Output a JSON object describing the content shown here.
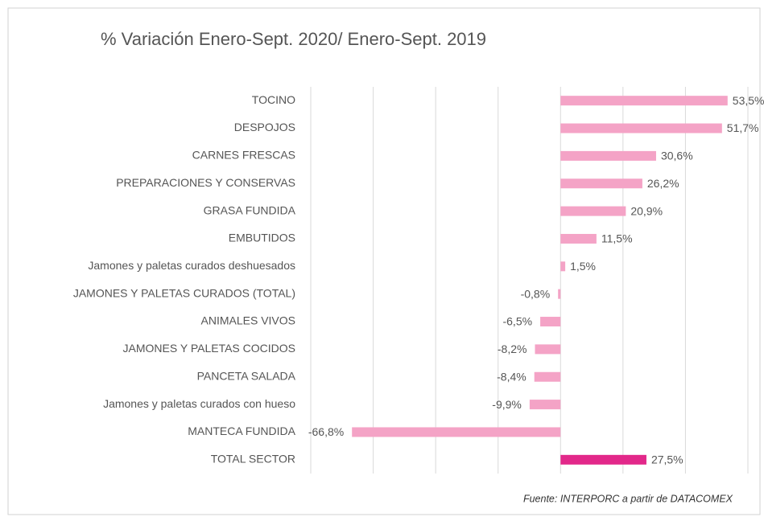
{
  "chart_data": {
    "type": "hbar",
    "title": "% Variación Enero-Sept. 2020/ Enero-Sept. 2019",
    "source": "Fuente: INTERPORC  a partir de DATACOMEX",
    "categories": [
      "TOCINO",
      "DESPOJOS",
      "CARNES FRESCAS",
      "PREPARACIONES Y CONSERVAS",
      "GRASA FUNDIDA",
      "EMBUTIDOS",
      "Jamones y paletas curados deshuesados",
      "JAMONES Y PALETAS CURADOS (TOTAL)",
      "ANIMALES VIVOS",
      "JAMONES Y PALETAS COCIDOS",
      "PANCETA SALADA",
      "Jamones y paletas curados con hueso",
      "MANTECA FUNDIDA",
      "TOTAL SECTOR"
    ],
    "values": [
      53.5,
      51.7,
      30.6,
      26.2,
      20.9,
      11.5,
      1.5,
      -0.8,
      -6.5,
      -8.2,
      -8.4,
      -9.9,
      -66.8,
      27.5
    ],
    "value_labels": [
      "53,5%",
      "51,7%",
      "30,6%",
      "26,2%",
      "20,9%",
      "11,5%",
      "1,5%",
      "-0,8%",
      "-6,5%",
      "-8,2%",
      "-8,4%",
      "-9,9%",
      "-66,8%",
      "27,5%"
    ],
    "colors": [
      "#f4a3c6",
      "#f4a3c6",
      "#f4a3c6",
      "#f4a3c6",
      "#f4a3c6",
      "#f4a3c6",
      "#f4a3c6",
      "#f4a3c6",
      "#f4a3c6",
      "#f4a3c6",
      "#f4a3c6",
      "#f4a3c6",
      "#f4a3c6",
      "#e2288a"
    ],
    "xlim": [
      -80,
      60
    ],
    "xticks": [
      -80,
      -60,
      -40,
      -20,
      0,
      20,
      40,
      60
    ],
    "grid": true
  }
}
